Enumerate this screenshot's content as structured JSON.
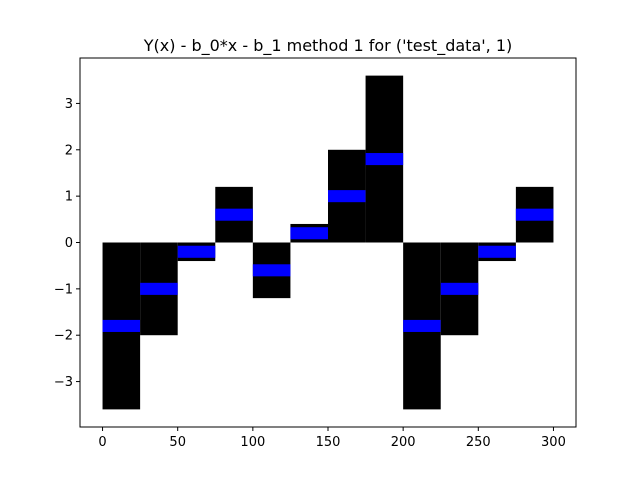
{
  "chart_data": {
    "type": "bar",
    "title": "Y(x) - b_0*x - b_1 method 1 for ('test_data', 1)",
    "xlabel": "",
    "ylabel": "",
    "xlim": [
      -15,
      315
    ],
    "ylim": [
      -3.98,
      3.98
    ],
    "xticks": [
      0,
      50,
      100,
      150,
      200,
      250,
      300
    ],
    "yticks": [
      -3,
      -2,
      -1,
      0,
      1,
      2,
      3
    ],
    "grid": false,
    "bar_width": 25,
    "bar_color": "#000000",
    "marker_color": "#0000ff",
    "marker_height": 0.26,
    "bars": [
      {
        "x": 0,
        "value": -3.6
      },
      {
        "x": 25,
        "value": -2.0
      },
      {
        "x": 50,
        "value": -0.4
      },
      {
        "x": 75,
        "value": 1.2
      },
      {
        "x": 100,
        "value": -1.2
      },
      {
        "x": 125,
        "value": 0.4
      },
      {
        "x": 150,
        "value": 2.0
      },
      {
        "x": 175,
        "value": 3.6
      },
      {
        "x": 200,
        "value": -3.6
      },
      {
        "x": 225,
        "value": -2.0
      },
      {
        "x": 250,
        "value": -0.4
      },
      {
        "x": 275,
        "value": 1.2
      }
    ]
  }
}
